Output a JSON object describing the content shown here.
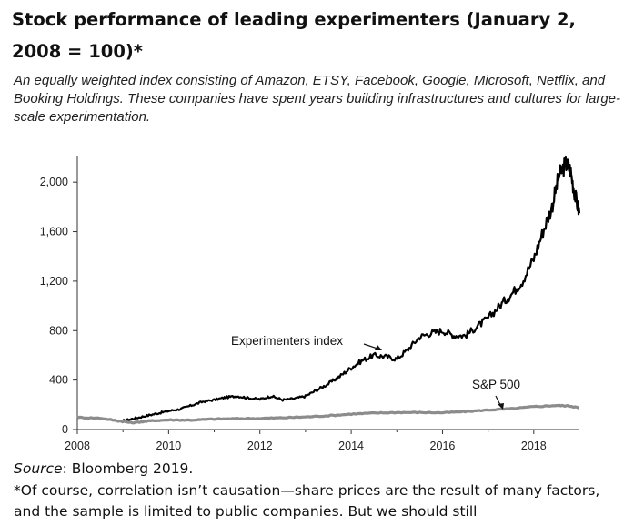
{
  "chart_data": {
    "type": "line",
    "title": "Stock performance of leading experimenters (January 2, 2008 = 100)*",
    "subtitle": "An equally weighted index consisting of Amazon, ETSY, Facebook, Google, Microsoft, Netflix, and Booking Holdings. These companies have spent years building infrastructures and cultures for large-scale experimentation.",
    "xlabel": "",
    "ylabel": "",
    "xlim": [
      2008,
      2019
    ],
    "ylim": [
      0,
      2200
    ],
    "x_ticks": [
      "2008",
      "2010",
      "2012",
      "2014",
      "2016",
      "2018"
    ],
    "y_ticks": [
      "0",
      "400",
      "800",
      "1,200",
      "1,600",
      "2,000"
    ],
    "grid": false,
    "series": [
      {
        "name": "Experimenters index",
        "color": "#000000",
        "x": [
          2009.0,
          2009.25,
          2009.5,
          2009.75,
          2010.0,
          2010.25,
          2010.5,
          2010.75,
          2011.0,
          2011.25,
          2011.5,
          2011.75,
          2012.0,
          2012.25,
          2012.5,
          2012.75,
          2013.0,
          2013.25,
          2013.5,
          2013.75,
          2014.0,
          2014.25,
          2014.5,
          2014.75,
          2015.0,
          2015.25,
          2015.5,
          2015.75,
          2016.0,
          2016.25,
          2016.5,
          2016.75,
          2017.0,
          2017.25,
          2017.5,
          2017.75,
          2018.0,
          2018.2,
          2018.4,
          2018.55,
          2018.7,
          2018.8,
          2018.9,
          2019.0
        ],
        "values": [
          70,
          90,
          110,
          130,
          150,
          165,
          195,
          225,
          240,
          260,
          270,
          255,
          245,
          270,
          240,
          250,
          270,
          320,
          370,
          430,
          500,
          560,
          600,
          590,
          570,
          650,
          750,
          780,
          800,
          760,
          760,
          830,
          900,
          1000,
          1090,
          1200,
          1380,
          1600,
          1800,
          2050,
          2150,
          2100,
          1900,
          1750
        ]
      },
      {
        "name": "S&P 500",
        "color": "#8c8c8c",
        "x": [
          2008.0,
          2008.5,
          2008.9,
          2009.2,
          2009.6,
          2010.0,
          2010.5,
          2011.0,
          2011.5,
          2012.0,
          2012.5,
          2013.0,
          2013.5,
          2014.0,
          2014.5,
          2015.0,
          2015.5,
          2016.0,
          2016.5,
          2017.0,
          2017.5,
          2018.0,
          2018.5,
          2018.8,
          2019.0
        ],
        "values": [
          98,
          92,
          70,
          55,
          70,
          78,
          76,
          85,
          88,
          90,
          95,
          102,
          112,
          125,
          133,
          138,
          138,
          136,
          145,
          158,
          168,
          185,
          195,
          190,
          175
        ]
      }
    ],
    "annotations": [
      {
        "text": "Experimenters index",
        "target_series": 0
      },
      {
        "text": "S&P 500",
        "target_series": 1
      }
    ]
  },
  "source": {
    "label": "Source",
    "text": ": Bloomberg 2019."
  },
  "footnote": "*Of course, correlation isn’t causation—share prices are the result of many factors, and the sample is limited to public companies. But we should still"
}
